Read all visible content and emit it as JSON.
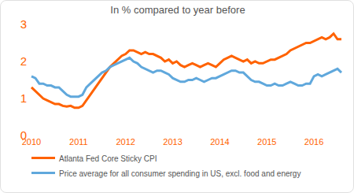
{
  "chart_data": {
    "type": "line",
    "title": "In % compared to year before",
    "categories": [
      "2010",
      null,
      null,
      null,
      null,
      null,
      null,
      null,
      null,
      null,
      null,
      null,
      "2011",
      null,
      null,
      null,
      null,
      null,
      null,
      null,
      null,
      null,
      null,
      null,
      "2012",
      null,
      null,
      null,
      null,
      null,
      null,
      null,
      null,
      null,
      null,
      null,
      "2013",
      null,
      null,
      null,
      null,
      null,
      null,
      null,
      null,
      null,
      null,
      null,
      "2014",
      null,
      null,
      null,
      null,
      null,
      null,
      null,
      null,
      null,
      null,
      null,
      "2015",
      null,
      null,
      null,
      null,
      null,
      null,
      null,
      null,
      null,
      null,
      null,
      "2016",
      null,
      null,
      null,
      null,
      null,
      null,
      null
    ],
    "series": [
      {
        "name": "Atlanta Fed Core Sticky CPI",
        "color": "#ff6200",
        "values": [
          1.3,
          1.2,
          1.1,
          1.0,
          0.95,
          0.9,
          0.85,
          0.85,
          0.8,
          0.78,
          0.8,
          0.75,
          0.75,
          0.8,
          0.95,
          1.1,
          1.25,
          1.4,
          1.55,
          1.7,
          1.85,
          1.95,
          2.05,
          2.15,
          2.2,
          2.3,
          2.3,
          2.25,
          2.2,
          2.25,
          2.2,
          2.2,
          2.15,
          2.1,
          2.0,
          2.05,
          1.95,
          2.0,
          1.9,
          1.85,
          1.9,
          1.95,
          1.9,
          1.85,
          1.9,
          1.95,
          1.9,
          1.85,
          1.95,
          2.05,
          2.1,
          2.15,
          2.1,
          2.05,
          2.0,
          2.05,
          1.95,
          2.0,
          1.95,
          1.95,
          2.0,
          2.05,
          2.05,
          2.1,
          2.15,
          2.2,
          2.3,
          2.35,
          2.4,
          2.45,
          2.5,
          2.5,
          2.55,
          2.6,
          2.65,
          2.6,
          2.65,
          2.75,
          2.6,
          2.6
        ]
      },
      {
        "name": "Price average for all consumer spending in US, excl. food and energy",
        "color": "#60a8dc",
        "values": [
          1.6,
          1.55,
          1.4,
          1.4,
          1.35,
          1.35,
          1.3,
          1.3,
          1.2,
          1.1,
          1.05,
          1.05,
          1.05,
          1.1,
          1.3,
          1.4,
          1.5,
          1.6,
          1.7,
          1.75,
          1.85,
          1.9,
          1.95,
          2.0,
          2.05,
          2.1,
          2.0,
          1.95,
          1.85,
          1.8,
          1.75,
          1.7,
          1.75,
          1.75,
          1.7,
          1.65,
          1.55,
          1.5,
          1.45,
          1.45,
          1.5,
          1.5,
          1.55,
          1.5,
          1.45,
          1.5,
          1.55,
          1.55,
          1.6,
          1.65,
          1.7,
          1.75,
          1.75,
          1.7,
          1.7,
          1.6,
          1.5,
          1.45,
          1.45,
          1.4,
          1.35,
          1.35,
          1.4,
          1.35,
          1.35,
          1.4,
          1.45,
          1.4,
          1.35,
          1.35,
          1.4,
          1.4,
          1.6,
          1.65,
          1.6,
          1.65,
          1.7,
          1.75,
          1.8,
          1.7
        ]
      }
    ],
    "ylim": [
      0,
      3
    ],
    "yticks": [
      0,
      1,
      2,
      3
    ],
    "grid": false,
    "legend": "bottom"
  }
}
